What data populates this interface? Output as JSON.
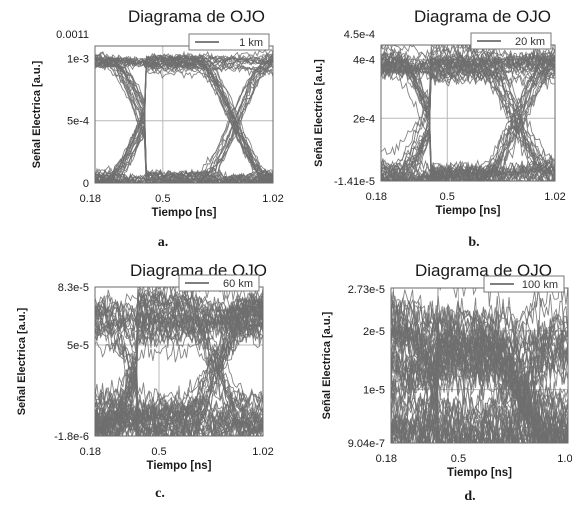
{
  "chart_data": [
    {
      "type": "line",
      "subtype": "eye-diagram",
      "title": "Diagrama de OJO",
      "xlabel": "Tiempo [ns]",
      "ylabel": "Señal Electrica [a.u.]",
      "xlim": [
        0.18,
        1.02
      ],
      "ylim": [
        0,
        0.0011
      ],
      "x_ticks": [
        "0.18",
        "0.5",
        "1.02"
      ],
      "y_ticks": [
        "0",
        "5e-4",
        "1e-3"
      ],
      "y_top_label": "0.0011",
      "legend": "1 km",
      "caption": "a.",
      "levels": {
        "low": 2e-05,
        "high": 0.00097
      },
      "crossings_ns": [
        0.418,
        0.838
      ],
      "noise": 3.5e-05,
      "grid": true,
      "legend_position": "top-right"
    },
    {
      "type": "line",
      "subtype": "eye-diagram",
      "title": "Diagrama de OJO",
      "xlabel": "Tiempo [ns]",
      "ylabel": "Señal Electrica [a.u.]",
      "xlim": [
        0.18,
        1.02
      ],
      "ylim": [
        -1.41e-05,
        0.00045
      ],
      "x_ticks": [
        "0.18",
        "0.5",
        "1.02"
      ],
      "y_ticks": [
        "-1.41e-5",
        "2e-4",
        "4e-4"
      ],
      "y_top_label": "4.5e-4",
      "legend": "20 km",
      "caption": "b.",
      "levels": {
        "low": 2e-06,
        "high": 0.000385
      },
      "crossings_ns": [
        0.418,
        0.838
      ],
      "noise": 2.5e-05,
      "grid": true,
      "legend_position": "top-right"
    },
    {
      "type": "line",
      "subtype": "eye-diagram",
      "title": "Diagrama de OJO",
      "xlabel": "Tiempo [ns]",
      "ylabel": "Señal Electrica [a.u.]",
      "xlim": [
        0.18,
        1.02
      ],
      "ylim": [
        -1.8e-06,
        8.3e-05
      ],
      "x_ticks": [
        "0.18",
        "0.5",
        "1.02"
      ],
      "y_ticks": [
        "-1.8e-6",
        "5e-5"
      ],
      "y_top_label": "8.3e-5",
      "legend": "60 km",
      "caption": "c.",
      "levels": {
        "low": 5.5e-06,
        "high": 6.55e-05
      },
      "crossings_ns": [
        0.39,
        0.785
      ],
      "noise": 7e-06,
      "grid": true,
      "legend_position": "top-right"
    },
    {
      "type": "line",
      "subtype": "eye-diagram",
      "title": "Diagrama de OJO",
      "xlabel": "Tiempo [ns]",
      "ylabel": "Señal Electrica [a.u.]",
      "xlim": [
        0.18,
        1.02
      ],
      "ylim": [
        9.04e-07,
        2.73e-05
      ],
      "x_ticks": [
        "0.18",
        "0.5",
        "1.02"
      ],
      "y_ticks": [
        "9.04e-7",
        "1e-5",
        "2e-5"
      ],
      "y_top_label": "2.73e-5",
      "legend": "100 km",
      "caption": "d.",
      "levels": {
        "low": 2.2e-06,
        "high": 1.75e-05
      },
      "crossings_ns": [
        0.4,
        0.8
      ],
      "noise": 3.5e-06,
      "grid": true,
      "legend_position": "top-right"
    }
  ]
}
